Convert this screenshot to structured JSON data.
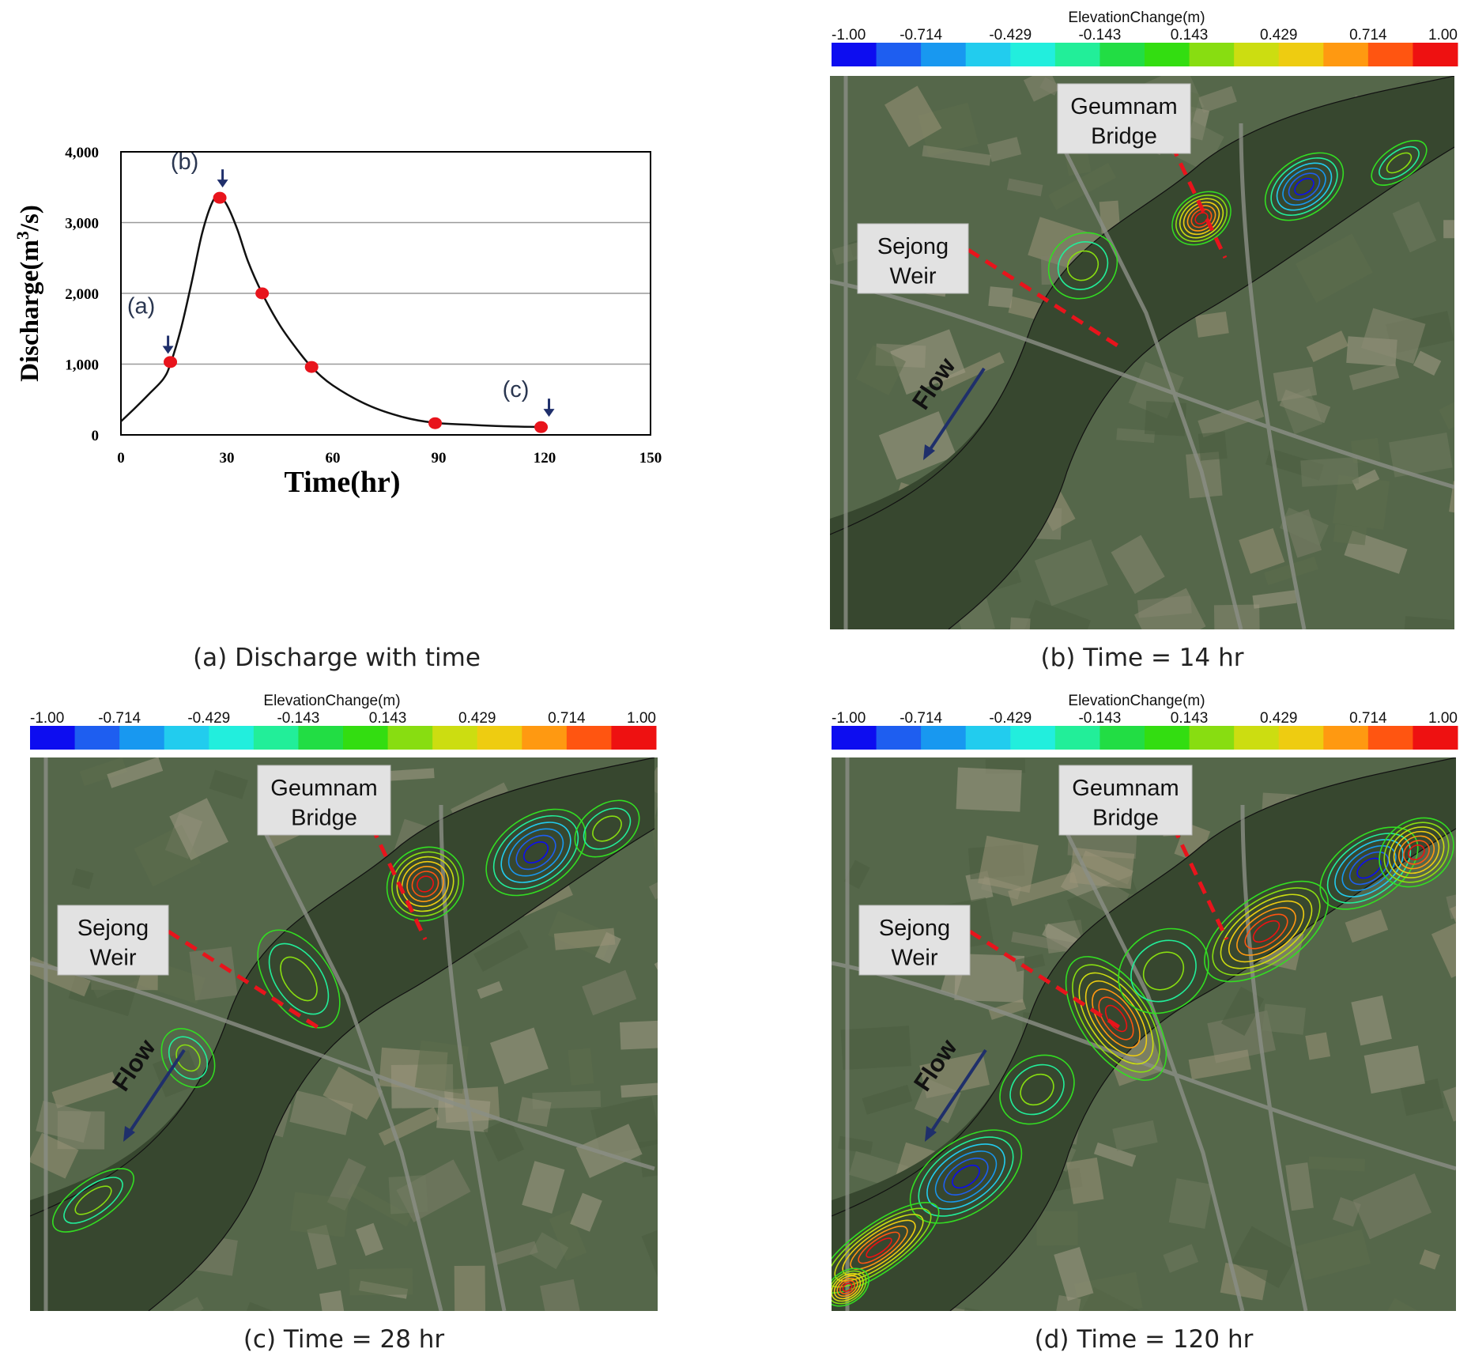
{
  "chart_data": [
    {
      "type": "line",
      "panel": "(a)",
      "xlabel": "Time(hr)",
      "ylabel": "Discharge(m³/s)",
      "xlim": [
        0,
        150
      ],
      "ylim": [
        0,
        4000
      ],
      "xticks": [
        0,
        30,
        60,
        90,
        120,
        150
      ],
      "yticks": [
        0,
        1000,
        2000,
        3000,
        4000
      ],
      "xtick_labels": [
        "0",
        "30",
        "60",
        "90",
        "120",
        "150"
      ],
      "ytick_labels": [
        "0",
        "1,000",
        "2,000",
        "3,000",
        "4,000"
      ],
      "grid": "horizontal",
      "series": [
        {
          "x": [
            0,
            4,
            8,
            12,
            14,
            17,
            20,
            23,
            26,
            28,
            30,
            33,
            36,
            40,
            45,
            50,
            54,
            60,
            70,
            80,
            89,
            100,
            110,
            120
          ],
          "values": [
            190,
            380,
            580,
            790,
            1000,
            1500,
            2150,
            2850,
            3300,
            3350,
            3250,
            2900,
            2450,
            2000,
            1550,
            1200,
            960,
            700,
            420,
            250,
            170,
            140,
            120,
            110
          ]
        }
      ],
      "markers": {
        "x": [
          14,
          28,
          40,
          54,
          89,
          119
        ],
        "values": [
          1030,
          3350,
          2000,
          960,
          165,
          110
        ],
        "color": "#e8141c"
      },
      "annotations": [
        {
          "label": "(a)",
          "x": 12,
          "y": 1000
        },
        {
          "label": "(b)",
          "x": 27,
          "y": 3350
        },
        {
          "label": "(c)",
          "x": 119,
          "y": 110
        }
      ]
    }
  ],
  "panels": {
    "b": {
      "colorbar_title": "ElevationChange(m)",
      "bridge_label_1": "Geumnam",
      "bridge_label_2": "Bridge",
      "weir_label_1": "Sejong",
      "weir_label_2": "Weir",
      "flow_label": "Flow"
    },
    "c": {
      "colorbar_title": "ElevationChange(m)",
      "bridge_label_1": "Geumnam",
      "bridge_label_2": "Bridge",
      "weir_label_1": "Sejong",
      "weir_label_2": "Weir",
      "flow_label": "Flow"
    },
    "d": {
      "colorbar_title": "ElevationChange(m)",
      "bridge_label_1": "Geumnam",
      "bridge_label_2": "Bridge",
      "weir_label_1": "Sejong",
      "weir_label_2": "Weir",
      "flow_label": "Flow"
    }
  },
  "colorbar": {
    "tick_labels": [
      "-1.00",
      "-0.714",
      "-0.429",
      "-0.143",
      "0.143",
      "0.429",
      "0.714",
      "1.00"
    ],
    "colors": [
      "#0d0df0",
      "#1e5ef0",
      "#1898f0",
      "#22ccee",
      "#22eedd",
      "#22ee99",
      "#22dd44",
      "#33dd11",
      "#88dd11",
      "#ccdd11",
      "#eecc11",
      "#ff9911",
      "#ff5511",
      "#ee1111"
    ]
  },
  "captions": {
    "a": "(a) Discharge with time",
    "b": "(b) Time = 14 hr",
    "c": "(c) Time = 28 hr",
    "d": "(d) Time = 120 hr"
  },
  "colors": {
    "marker": "#e8141c",
    "arrow": "#1f2f6b",
    "dashed_line": "#e8141c",
    "map_base": "#55674a",
    "river": "#37472f"
  }
}
